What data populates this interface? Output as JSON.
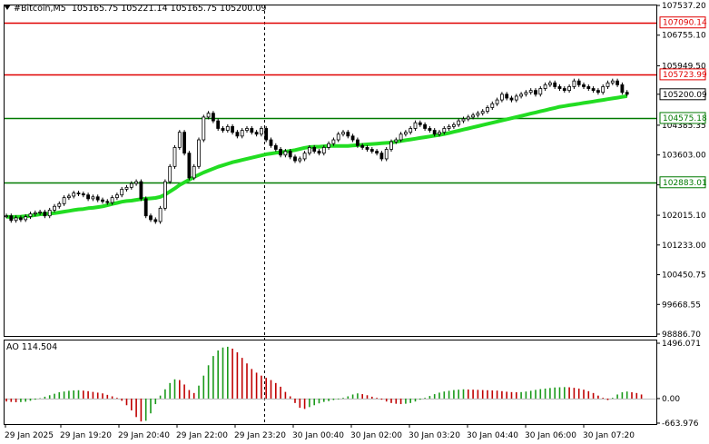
{
  "header": {
    "symbol": "#Bitcoin,M5",
    "ohlc": "105165.75 105221.14 105165.75 105200.09"
  },
  "ao_panel": {
    "label": "AO 114.504"
  },
  "colors": {
    "background": "#ffffff",
    "candle": "#000000",
    "ma": "#22dd22",
    "resistance": "#e00000",
    "support": "#007a00",
    "ao_up": "#1a9a1a",
    "ao_down": "#c00000",
    "price_tag_bg": "#ffffff"
  },
  "chart_data": [
    {
      "type": "candlestick",
      "title": "#Bitcoin,M5",
      "ylim": [
        98886.7,
        107537.2
      ],
      "y_ticks": [
        "107537.20",
        "106755.10",
        "105949.50",
        "105200.09",
        "104385.35",
        "103603.00",
        "102815.00",
        "102015.10",
        "101233.00",
        "100450.75",
        "99668.55",
        "98886.70"
      ],
      "x_labels": [
        "29 Jan 2025",
        "29 Jan 19:20",
        "29 Jan 20:40",
        "29 Jan 22:00",
        "29 Jan 23:20",
        "30 Jan 00:40",
        "30 Jan 02:00",
        "30 Jan 03:20",
        "30 Jan 04:40",
        "30 Jan 06:00",
        "30 Jan 07:20"
      ],
      "close_series": [
        102000,
        101880,
        101950,
        101900,
        101980,
        102050,
        102080,
        102100,
        102000,
        102150,
        102250,
        102320,
        102480,
        102520,
        102600,
        102580,
        102550,
        102450,
        102500,
        102420,
        102380,
        102350,
        102480,
        102550,
        102700,
        102750,
        102850,
        102900,
        102450,
        102000,
        101900,
        101850,
        102200,
        102900,
        103300,
        103800,
        104200,
        103650,
        103000,
        103300,
        104000,
        104600,
        104700,
        104500,
        104300,
        104250,
        104350,
        104200,
        104100,
        104250,
        104300,
        104200,
        104150,
        104300,
        104000,
        103850,
        103750,
        103600,
        103700,
        103550,
        103450,
        103500,
        103650,
        103800,
        103700,
        103650,
        103800,
        103900,
        104000,
        104150,
        104200,
        104100,
        104000,
        103850,
        103800,
        103750,
        103700,
        103650,
        103500,
        103750,
        103950,
        104000,
        104150,
        104200,
        104300,
        104450,
        104400,
        104300,
        104250,
        104150,
        104200,
        104300,
        104350,
        104400,
        104500,
        104550,
        104600,
        104650,
        104700,
        104750,
        104850,
        104950,
        105050,
        105200,
        105100,
        105050,
        105150,
        105200,
        105250,
        105300,
        105200,
        105350,
        105450,
        105500,
        105400,
        105350,
        105300,
        105400,
        105550,
        105450,
        105400,
        105350,
        105300,
        105250,
        105400,
        105500,
        105550,
        105450,
        105250,
        105200
      ],
      "series": [
        {
          "name": "",
          "type": "moving-average",
          "values": [
            101980,
            101970,
            101975,
            101980,
            101990,
            102000,
            102020,
            102040,
            102050,
            102060,
            102070,
            102090,
            102110,
            102130,
            102150,
            102170,
            102180,
            102200,
            102210,
            102230,
            102250,
            102280,
            102310,
            102340,
            102370,
            102390,
            102400,
            102420,
            102440,
            102450,
            102460,
            102470,
            102500,
            102560,
            102640,
            102720,
            102810,
            102880,
            102950,
            103020,
            103080,
            103140,
            103190,
            103240,
            103290,
            103330,
            103370,
            103410,
            103440,
            103470,
            103500,
            103530,
            103560,
            103590,
            103620,
            103640,
            103660,
            103670,
            103690,
            103710,
            103730,
            103760,
            103790,
            103810,
            103820,
            103820,
            103830,
            103840,
            103840,
            103840,
            103840,
            103840,
            103850,
            103860,
            103870,
            103880,
            103890,
            103900,
            103910,
            103920,
            103930,
            103950,
            103970,
            103990,
            104010,
            104030,
            104050,
            104070,
            104090,
            104110,
            104130,
            104150,
            104180,
            104210,
            104240,
            104270,
            104300,
            104330,
            104360,
            104390,
            104420,
            104450,
            104480,
            104510,
            104540,
            104570,
            104600,
            104630,
            104660,
            104690,
            104720,
            104750,
            104780,
            104810,
            104840,
            104870,
            104890,
            104910,
            104930,
            104950,
            104970,
            104990,
            105010,
            105030,
            105050,
            105070,
            105090,
            105110,
            105130,
            105150
          ]
        }
      ],
      "horizontal_levels": [
        {
          "label": "107090.14",
          "value": 107090.14,
          "kind": "resistance"
        },
        {
          "label": "105723.99",
          "value": 105723.99,
          "kind": "resistance"
        },
        {
          "label": "104575.18",
          "value": 104575.18,
          "kind": "support"
        },
        {
          "label": "102883.01",
          "value": 102883.01,
          "kind": "support"
        }
      ],
      "current_price_label": "105200.09",
      "current_price": 105200.09
    },
    {
      "type": "bar",
      "title": "AO 114.504",
      "ylim": [
        -663.976,
        1496.071
      ],
      "y_ticks": [
        "1496.071",
        "0.00",
        "-663.976"
      ],
      "values": [
        -80,
        -90,
        -100,
        -95,
        -85,
        -60,
        -30,
        10,
        50,
        90,
        130,
        170,
        190,
        210,
        220,
        225,
        215,
        200,
        180,
        160,
        140,
        100,
        60,
        20,
        -60,
        -180,
        -320,
        -500,
        -620,
        -600,
        -400,
        -150,
        80,
        250,
        420,
        520,
        500,
        380,
        230,
        150,
        350,
        620,
        900,
        1150,
        1300,
        1380,
        1400,
        1350,
        1250,
        1100,
        950,
        800,
        700,
        620,
        560,
        500,
        420,
        320,
        180,
        60,
        -120,
        -250,
        -280,
        -230,
        -180,
        -130,
        -90,
        -70,
        -40,
        -20,
        20,
        60,
        110,
        140,
        120,
        90,
        50,
        20,
        -30,
        -80,
        -120,
        -140,
        -150,
        -140,
        -120,
        -80,
        -30,
        20,
        70,
        120,
        160,
        190,
        210,
        230,
        240,
        250,
        245,
        240,
        235,
        230,
        225,
        220,
        215,
        200,
        185,
        175,
        170,
        175,
        190,
        210,
        235,
        255,
        270,
        285,
        300,
        305,
        310,
        305,
        290,
        270,
        240,
        200,
        150,
        80,
        20,
        -40,
        20,
        110,
        170,
        190,
        170,
        150,
        110
      ]
    }
  ]
}
